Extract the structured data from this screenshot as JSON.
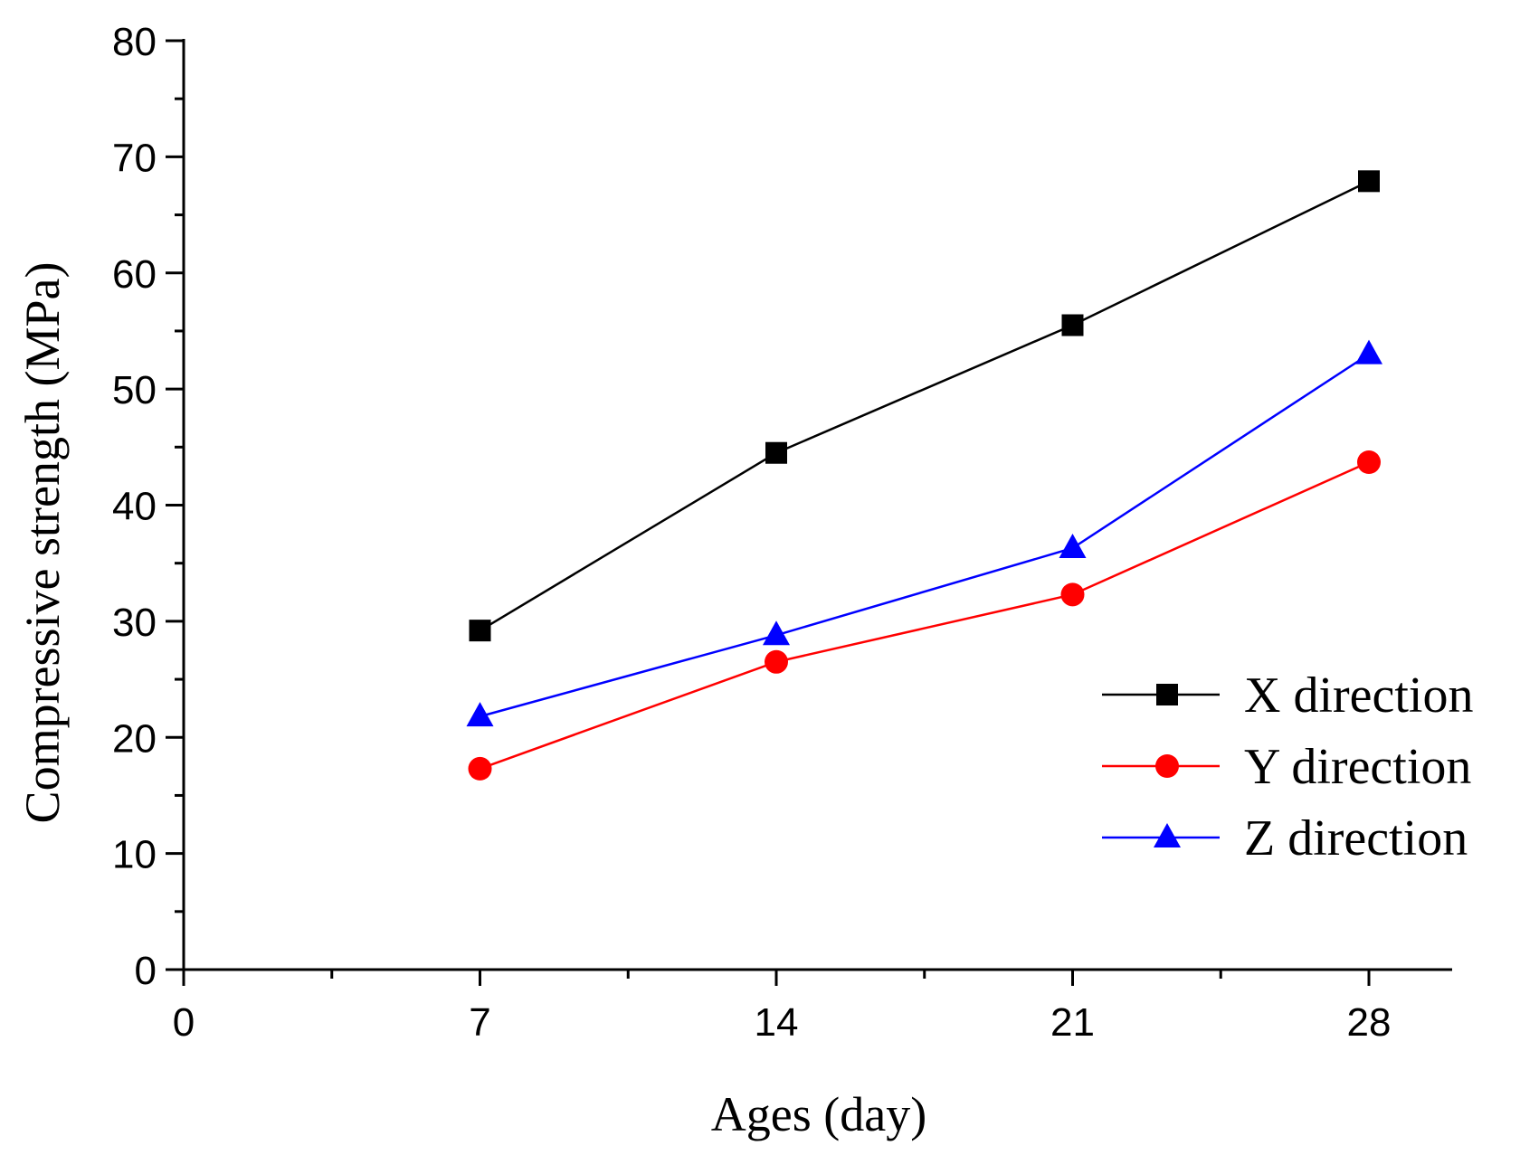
{
  "chart_data": {
    "type": "line",
    "title": "",
    "xlabel": "Ages (day)",
    "ylabel": "Compressive strength (MPa)",
    "xlim": [
      0,
      30
    ],
    "ylim": [
      0,
      80
    ],
    "x_major_ticks": [
      0,
      7,
      14,
      21,
      28
    ],
    "x_minor_ticks": [
      3.5,
      10.5,
      17.5,
      24.5
    ],
    "y_major_ticks": [
      0,
      10,
      20,
      30,
      40,
      50,
      60,
      70,
      80
    ],
    "y_minor_ticks": [
      5,
      15,
      25,
      35,
      45,
      55,
      65,
      75
    ],
    "grid": false,
    "legend_position": "right",
    "x": [
      7,
      14,
      21,
      28
    ],
    "series": [
      {
        "name": "X direction",
        "values": [
          29.2,
          44.5,
          55.5,
          67.9
        ],
        "color": "#000000",
        "marker": "square"
      },
      {
        "name": "Y direction",
        "values": [
          17.3,
          26.5,
          32.3,
          43.7
        ],
        "color": "#ff0000",
        "marker": "circle"
      },
      {
        "name": "Z direction",
        "values": [
          21.8,
          28.8,
          36.3,
          53.0
        ],
        "color": "#0000ff",
        "marker": "triangle"
      }
    ]
  }
}
